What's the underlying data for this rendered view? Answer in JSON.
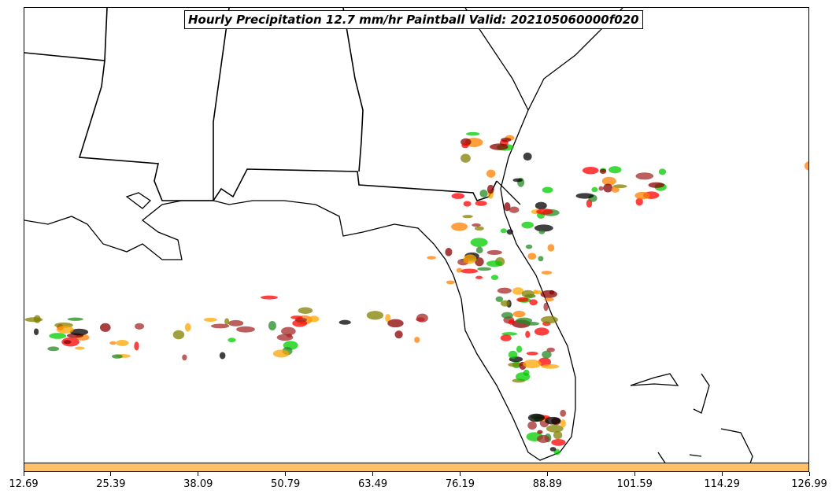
{
  "title": "Hourly Precipitation 12.7 mm/hr Paintball Valid: 202105060000f020",
  "colorbar": {
    "color": "#ffc26a",
    "ticks": [
      "12.69",
      "25.39",
      "38.09",
      "50.79",
      "63.49",
      "76.19",
      "88.89",
      "101.59",
      "114.29",
      "126.99"
    ]
  },
  "colors": {
    "paintball": [
      "#ff0000",
      "#ff7f00",
      "#ffa500",
      "#00cc00",
      "#228b22",
      "#8b0000",
      "#808000",
      "#000000",
      "#a52a2a"
    ]
  }
}
